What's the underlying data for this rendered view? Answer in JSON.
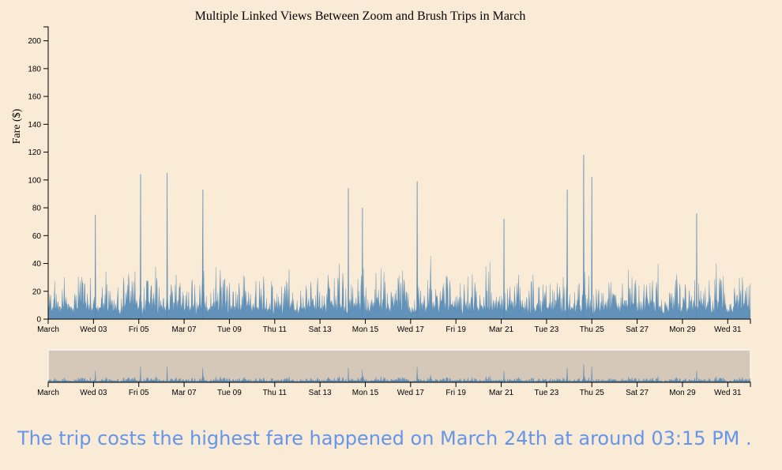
{
  "title": "Multiple Linked Views Between Zoom and Brush Trips in March",
  "ylabel": "Fare ($)",
  "caption": "The trip costs the highest fare happened on March 24th at around 03:15 PM .",
  "colors": {
    "background": "#faebd7",
    "bars": "#4682b4",
    "brush": "#d6c8b8",
    "caption": "#6495ed"
  },
  "chart_data": {
    "type": "area",
    "title": "Multiple Linked Views Between Zoom and Brush Trips in March",
    "ylabel": "Fare ($)",
    "xlabel": "",
    "ylim": [
      0,
      210
    ],
    "yticks": [
      0,
      20,
      40,
      60,
      80,
      100,
      120,
      140,
      160,
      180,
      200
    ],
    "xlim": [
      "2021-03-01",
      "2021-04-01"
    ],
    "xticks": [
      "March",
      "Wed 03",
      "Fri 05",
      "Mar 07",
      "Tue 09",
      "Thu 11",
      "Sat 13",
      "Mon 15",
      "Wed 17",
      "Fri 19",
      "Mar 21",
      "Tue 23",
      "Thu 25",
      "Sat 27",
      "Mon 29",
      "Wed 31"
    ],
    "peaks": [
      {
        "x": "2021-03-03T02:00",
        "y": 75
      },
      {
        "x": "2021-03-05T02:00",
        "y": 104
      },
      {
        "x": "2021-03-06T06:00",
        "y": 105
      },
      {
        "x": "2021-03-07T20:00",
        "y": 93
      },
      {
        "x": "2021-03-14T06:00",
        "y": 94
      },
      {
        "x": "2021-03-14T21:00",
        "y": 80
      },
      {
        "x": "2021-03-17T07:00",
        "y": 99
      },
      {
        "x": "2021-03-21T03:00",
        "y": 72
      },
      {
        "x": "2021-03-23T22:00",
        "y": 93
      },
      {
        "x": "2021-03-24T15:15",
        "y": 118
      },
      {
        "x": "2021-03-25T00:00",
        "y": 102
      },
      {
        "x": "2021-03-29T15:00",
        "y": 76
      }
    ],
    "typical_range": [
      0,
      45
    ],
    "grid": false,
    "brush_range": [
      "2021-03-01",
      "2021-04-01"
    ]
  }
}
